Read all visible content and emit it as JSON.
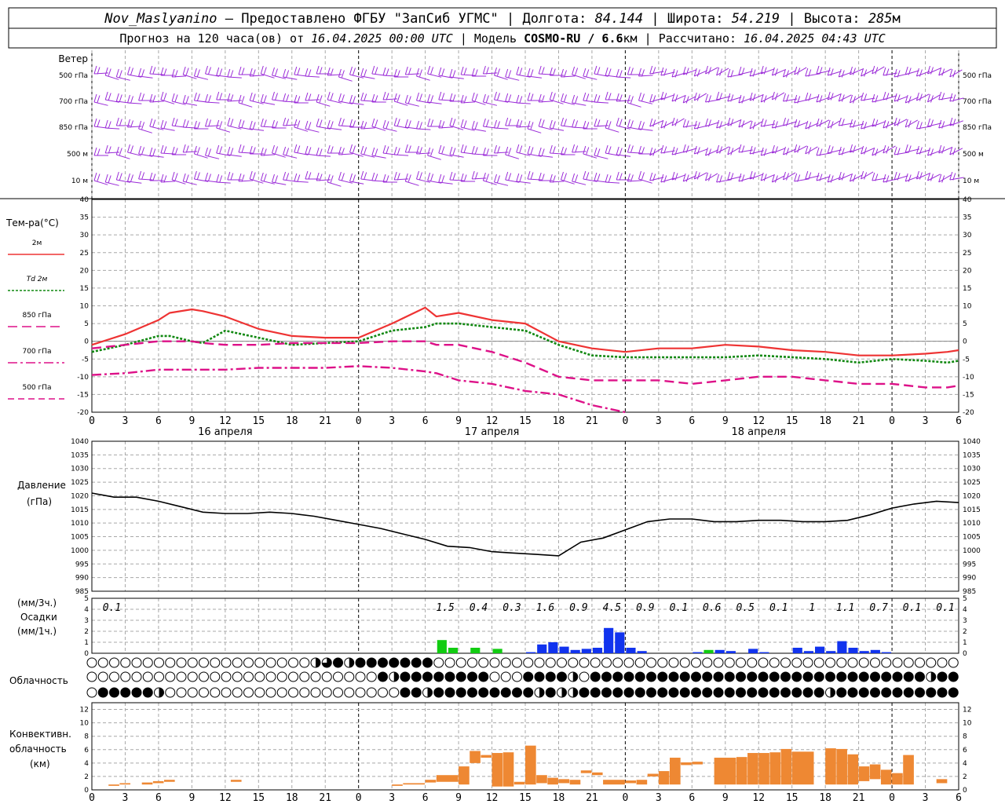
{
  "header": {
    "line1": {
      "station": "Nov_Maslyanino",
      "provider": "– Предоставлено ФГБУ \"ЗапСиб УГМС\"",
      "lon_label": "Долгота:",
      "lon_value": "84.144",
      "lat_label": "Широта:",
      "lat_value": "54.219",
      "alt_label": "Высота:",
      "alt_value": "285",
      "alt_unit": "м"
    },
    "line2": {
      "forecast_prefix": "Прогноз на 120 часа(ов) от",
      "forecast_start": "16.04.2025 00:00 UTC",
      "model_label": "Модель",
      "model_name": "COSMO-RU / 6.6",
      "model_unit": "км",
      "calc_label": "Рассчитано:",
      "calc_time": "16.04.2025 04:43 UTC"
    }
  },
  "time_axis": {
    "hour_labels": [
      "0",
      "3",
      "6",
      "9",
      "12",
      "15",
      "18",
      "21",
      "0",
      "3",
      "6",
      "9",
      "12",
      "15",
      "18",
      "21",
      "0",
      "3",
      "6",
      "9",
      "12",
      "15",
      "18",
      "21",
      "0",
      "3",
      "6"
    ],
    "day_labels": [
      "16 апреля",
      "17 апреля",
      "18 апреля"
    ],
    "hours_total": 78
  },
  "wind_panel": {
    "title": "Ветер",
    "levels": [
      "500 гПа",
      "700 гПа",
      "850 гПа",
      "500 м",
      "10 м"
    ],
    "color": "#9a2ad8"
  },
  "chart_data": [
    {
      "type": "line",
      "title": "Тем-ра(°C)",
      "ylim": [
        -20,
        40
      ],
      "yticks": [
        -20,
        -15,
        -10,
        -5,
        0,
        5,
        10,
        15,
        20,
        25,
        30,
        35,
        40
      ],
      "x": [
        0,
        3,
        6,
        7,
        9,
        10,
        12,
        15,
        18,
        21,
        24,
        27,
        30,
        31,
        33,
        36,
        39,
        42,
        45,
        48,
        51,
        54,
        57,
        60,
        63,
        66,
        69,
        72,
        75,
        77,
        78
      ],
      "series": [
        {
          "name": "2м",
          "color": "#ee3333",
          "style": "solid",
          "values": [
            -1,
            2,
            6,
            8,
            9,
            8.5,
            7,
            3.5,
            1.5,
            1,
            1,
            5,
            9.5,
            7,
            8,
            6,
            5,
            0,
            -2,
            -3,
            -2,
            -2,
            -1,
            -1.5,
            -2.5,
            -3,
            -4,
            -4,
            -3.5,
            -3,
            -2.5
          ]
        },
        {
          "name": "Td 2м",
          "color": "#118811",
          "style": "dot",
          "values": [
            -3,
            -1,
            1.5,
            1.5,
            0,
            -0.5,
            3,
            1,
            -1,
            -0.5,
            0,
            3,
            4,
            5,
            5,
            4,
            3,
            -1,
            -4,
            -4.5,
            -4.5,
            -4.5,
            -4.5,
            -4,
            -4.5,
            -5,
            -6,
            -5,
            -5.5,
            -6,
            -5.5
          ]
        },
        {
          "name": "850 гПа",
          "color": "#dd1188",
          "style": "dash",
          "values": [
            -2,
            -1,
            0,
            0,
            0,
            -0.5,
            -1,
            -1,
            -0.5,
            -0.5,
            -0.5,
            0,
            0,
            -1,
            -1,
            -3,
            -6,
            -10,
            -11,
            -11,
            -11,
            -12,
            -11,
            -10,
            -10,
            -11,
            -12,
            -12,
            -13,
            -13,
            -12.5
          ]
        },
        {
          "name": "700 гПа",
          "color": "#dd1188",
          "style": "dashdot",
          "values": [
            -9.5,
            -9,
            -8,
            -8,
            -8,
            -8,
            -8,
            -7.5,
            -7.5,
            -7.5,
            -7,
            -7.5,
            -8.5,
            -9,
            -11,
            -12,
            -14,
            -15,
            -18,
            -20,
            null,
            null,
            null,
            null,
            null,
            null,
            null,
            null,
            null,
            null,
            null
          ]
        },
        {
          "name": "500 гПа",
          "color": "#dd1188",
          "style": "longdash",
          "values": [
            null,
            null,
            null,
            null,
            null,
            null,
            null,
            null,
            null,
            null,
            null,
            null,
            null,
            null,
            null,
            null,
            null,
            null,
            null,
            null,
            null,
            null,
            null,
            null,
            null,
            null,
            null,
            null,
            null,
            null,
            null
          ]
        }
      ]
    },
    {
      "type": "line",
      "title": "Давление",
      "ylabel": "(гПа)",
      "ylim": [
        985,
        1040
      ],
      "yticks": [
        985,
        990,
        995,
        1000,
        1005,
        1010,
        1015,
        1020,
        1025,
        1030,
        1035,
        1040
      ],
      "x": [
        0,
        2,
        4,
        6,
        8,
        10,
        12,
        14,
        16,
        18,
        20,
        22,
        24,
        26,
        28,
        30,
        32,
        34,
        36,
        38,
        40,
        42,
        44,
        46,
        48,
        50,
        52,
        54,
        56,
        58,
        60,
        62,
        64,
        66,
        68,
        70,
        72,
        74,
        76,
        78
      ],
      "series": [
        {
          "name": "Давление",
          "color": "#000000",
          "values": [
            1021,
            1019.5,
            1019.5,
            1018,
            1016,
            1014,
            1013.5,
            1013.5,
            1014,
            1013.5,
            1012.5,
            1011,
            1009.5,
            1008,
            1006,
            1004,
            1001.5,
            1001,
            999.5,
            999,
            998.5,
            998,
            1003,
            1004.5,
            1007.5,
            1010.5,
            1011.5,
            1011.5,
            1010.5,
            1010.5,
            1011,
            1011,
            1010.5,
            1010.5,
            1011,
            1013,
            1015.5,
            1017,
            1018,
            1017.5
          ]
        }
      ]
    },
    {
      "type": "bar",
      "title": "Осадки",
      "ylabel": "(мм/3ч.)",
      "ylabel2": "(мм/1ч.)",
      "ylim": [
        0,
        5
      ],
      "yticks": [
        0,
        1,
        2,
        3,
        4,
        5
      ],
      "three_hour_totals": [
        {
          "x": 3,
          "value": "0.1"
        },
        {
          "x": 33,
          "value": "1.5"
        },
        {
          "x": 36,
          "value": "0.4"
        },
        {
          "x": 39,
          "value": "0.3"
        },
        {
          "x": 42,
          "value": "1.6"
        },
        {
          "x": 45,
          "value": "0.9"
        },
        {
          "x": 48,
          "value": "4.5"
        },
        {
          "x": 51,
          "value": "0.9"
        },
        {
          "x": 54,
          "value": "0.1"
        },
        {
          "x": 57,
          "value": "0.6"
        },
        {
          "x": 60,
          "value": "0.5"
        },
        {
          "x": 63,
          "value": "0.1"
        },
        {
          "x": 66,
          "value": "1"
        },
        {
          "x": 69,
          "value": "1.1"
        },
        {
          "x": 72,
          "value": "0.7"
        },
        {
          "x": 75,
          "value": "0.1"
        },
        {
          "x": 78,
          "value": "0.1"
        }
      ],
      "hourly": [
        {
          "x": 32,
          "value": 1.2,
          "kind": "rain"
        },
        {
          "x": 33,
          "value": 0.5,
          "kind": "rain"
        },
        {
          "x": 35,
          "value": 0.5,
          "kind": "rain"
        },
        {
          "x": 37,
          "value": 0.4,
          "kind": "rain"
        },
        {
          "x": 40,
          "value": 0.1,
          "kind": "snow"
        },
        {
          "x": 41,
          "value": 0.8,
          "kind": "snow"
        },
        {
          "x": 42,
          "value": 1.0,
          "kind": "snow"
        },
        {
          "x": 43,
          "value": 0.6,
          "kind": "snow"
        },
        {
          "x": 44,
          "value": 0.3,
          "kind": "snow"
        },
        {
          "x": 45,
          "value": 0.4,
          "kind": "snow"
        },
        {
          "x": 46,
          "value": 0.5,
          "kind": "snow"
        },
        {
          "x": 47,
          "value": 2.3,
          "kind": "snow"
        },
        {
          "x": 48,
          "value": 1.9,
          "kind": "snow"
        },
        {
          "x": 49,
          "value": 0.5,
          "kind": "snow"
        },
        {
          "x": 50,
          "value": 0.2,
          "kind": "snow"
        },
        {
          "x": 55,
          "value": 0.1,
          "kind": "snow"
        },
        {
          "x": 56,
          "value": 0.3,
          "kind": "rain"
        },
        {
          "x": 57,
          "value": 0.3,
          "kind": "snow"
        },
        {
          "x": 58,
          "value": 0.2,
          "kind": "snow"
        },
        {
          "x": 60,
          "value": 0.4,
          "kind": "snow"
        },
        {
          "x": 61,
          "value": 0.1,
          "kind": "snow"
        },
        {
          "x": 64,
          "value": 0.5,
          "kind": "snow"
        },
        {
          "x": 65,
          "value": 0.2,
          "kind": "snow"
        },
        {
          "x": 66,
          "value": 0.6,
          "kind": "snow"
        },
        {
          "x": 67,
          "value": 0.2,
          "kind": "snow"
        },
        {
          "x": 68,
          "value": 1.1,
          "kind": "snow"
        },
        {
          "x": 69,
          "value": 0.5,
          "kind": "snow"
        },
        {
          "x": 70,
          "value": 0.2,
          "kind": "snow"
        },
        {
          "x": 71,
          "value": 0.3,
          "kind": "snow"
        },
        {
          "x": 72,
          "value": 0.1,
          "kind": "snow"
        }
      ],
      "colors": {
        "rain": "#11cc11",
        "snow": "#1133ee"
      }
    },
    {
      "type": "table",
      "title": "Облачность",
      "rows": [
        "ooooooooooooooooooooh3HhHHHHHHHoooooooooooooooooooooooooooooooooooooooooooooooooooooooooooooooooooooooooooooo",
        "ooooooooooooooooooooooooooHhHHHHHHHHoooHHHHhoHHHHHHHHHHHHHHHHHHHHHHHHHHHHHHhHHHHHHHHHHhoooooooHh",
        "oHHHHHhoooooooooooooooooooooHHhHHHHHHHHHhHhhHHHHHHHHHHHHHHHHHHHHHHhHHHHHHHHHHHHHHHHHHHHHHHHHHH"
      ]
    },
    {
      "type": "bar",
      "title": "Конвективн.",
      "ylabel": "облачность",
      "unit": "(км)",
      "ylim": [
        0,
        13
      ],
      "yticks": [
        0,
        2,
        4,
        6,
        8,
        10,
        12
      ],
      "color": "#ee8833",
      "bars": [
        {
          "x0": 1.5,
          "x1": 2.5,
          "low": 0.6,
          "high": 0.8
        },
        {
          "x0": 2.5,
          "x1": 3.5,
          "low": 0.8,
          "high": 1.0
        },
        {
          "x0": 4.5,
          "x1": 5.5,
          "low": 0.8,
          "high": 1.1
        },
        {
          "x0": 5.5,
          "x1": 6.5,
          "low": 1.0,
          "high": 1.3
        },
        {
          "x0": 6.5,
          "x1": 7.5,
          "low": 1.2,
          "high": 1.5
        },
        {
          "x0": 12.5,
          "x1": 13.5,
          "low": 1.2,
          "high": 1.5
        },
        {
          "x0": 27,
          "x1": 28,
          "low": 0.6,
          "high": 0.8
        },
        {
          "x0": 28,
          "x1": 30,
          "low": 0.8,
          "high": 1.0
        },
        {
          "x0": 30,
          "x1": 31,
          "low": 1.1,
          "high": 1.5
        },
        {
          "x0": 31,
          "x1": 33,
          "low": 1.2,
          "high": 2.2
        },
        {
          "x0": 33,
          "x1": 34,
          "low": 0.8,
          "high": 3.5
        },
        {
          "x0": 34,
          "x1": 35,
          "low": 4.0,
          "high": 5.8
        },
        {
          "x0": 35,
          "x1": 36,
          "low": 4.8,
          "high": 5.2
        },
        {
          "x0": 36,
          "x1": 37,
          "low": 0.5,
          "high": 5.5
        },
        {
          "x0": 37,
          "x1": 38,
          "low": 0.5,
          "high": 5.6
        },
        {
          "x0": 38,
          "x1": 39,
          "low": 0.8,
          "high": 1.2
        },
        {
          "x0": 39,
          "x1": 40,
          "low": 0.8,
          "high": 6.6
        },
        {
          "x0": 40,
          "x1": 41,
          "low": 1.0,
          "high": 2.2
        },
        {
          "x0": 41,
          "x1": 42,
          "low": 0.8,
          "high": 1.8
        },
        {
          "x0": 42,
          "x1": 43,
          "low": 1.0,
          "high": 1.6
        },
        {
          "x0": 43,
          "x1": 44,
          "low": 0.8,
          "high": 1.5
        },
        {
          "x0": 44,
          "x1": 45,
          "low": 2.5,
          "high": 2.9
        },
        {
          "x0": 45,
          "x1": 46,
          "low": 2.2,
          "high": 2.6
        },
        {
          "x0": 46,
          "x1": 48,
          "low": 0.8,
          "high": 1.5
        },
        {
          "x0": 48,
          "x1": 49,
          "low": 1.0,
          "high": 1.4
        },
        {
          "x0": 49,
          "x1": 50,
          "low": 0.8,
          "high": 1.5
        },
        {
          "x0": 50,
          "x1": 51,
          "low": 2.0,
          "high": 2.4
        },
        {
          "x0": 51,
          "x1": 52,
          "low": 0.8,
          "high": 2.8
        },
        {
          "x0": 52,
          "x1": 53,
          "low": 0.8,
          "high": 4.8
        },
        {
          "x0": 53,
          "x1": 54,
          "low": 3.7,
          "high": 4.1
        },
        {
          "x0": 54,
          "x1": 55,
          "low": 3.8,
          "high": 4.2
        },
        {
          "x0": 56,
          "x1": 58,
          "low": 0.8,
          "high": 4.8
        },
        {
          "x0": 58,
          "x1": 59,
          "low": 0.8,
          "high": 4.9
        },
        {
          "x0": 59,
          "x1": 60,
          "low": 0.8,
          "high": 5.5
        },
        {
          "x0": 60,
          "x1": 61,
          "low": 0.8,
          "high": 5.5
        },
        {
          "x0": 61,
          "x1": 62,
          "low": 0.8,
          "high": 5.6
        },
        {
          "x0": 62,
          "x1": 63,
          "low": 0.8,
          "high": 6.1
        },
        {
          "x0": 63,
          "x1": 65,
          "low": 0.8,
          "high": 5.7
        },
        {
          "x0": 66,
          "x1": 67,
          "low": 0.8,
          "high": 6.2
        },
        {
          "x0": 67,
          "x1": 68,
          "low": 0.8,
          "high": 6.1
        },
        {
          "x0": 68,
          "x1": 69,
          "low": 0.8,
          "high": 5.3
        },
        {
          "x0": 69,
          "x1": 70,
          "low": 1.3,
          "high": 3.5
        },
        {
          "x0": 70,
          "x1": 71,
          "low": 1.6,
          "high": 3.8
        },
        {
          "x0": 71,
          "x1": 72,
          "low": 0.8,
          "high": 3.0
        },
        {
          "x0": 72,
          "x1": 73,
          "low": 0.8,
          "high": 2.5
        },
        {
          "x0": 73,
          "x1": 74,
          "low": 0.8,
          "high": 5.2
        },
        {
          "x0": 76,
          "x1": 77,
          "low": 1.0,
          "high": 1.6
        }
      ]
    }
  ]
}
